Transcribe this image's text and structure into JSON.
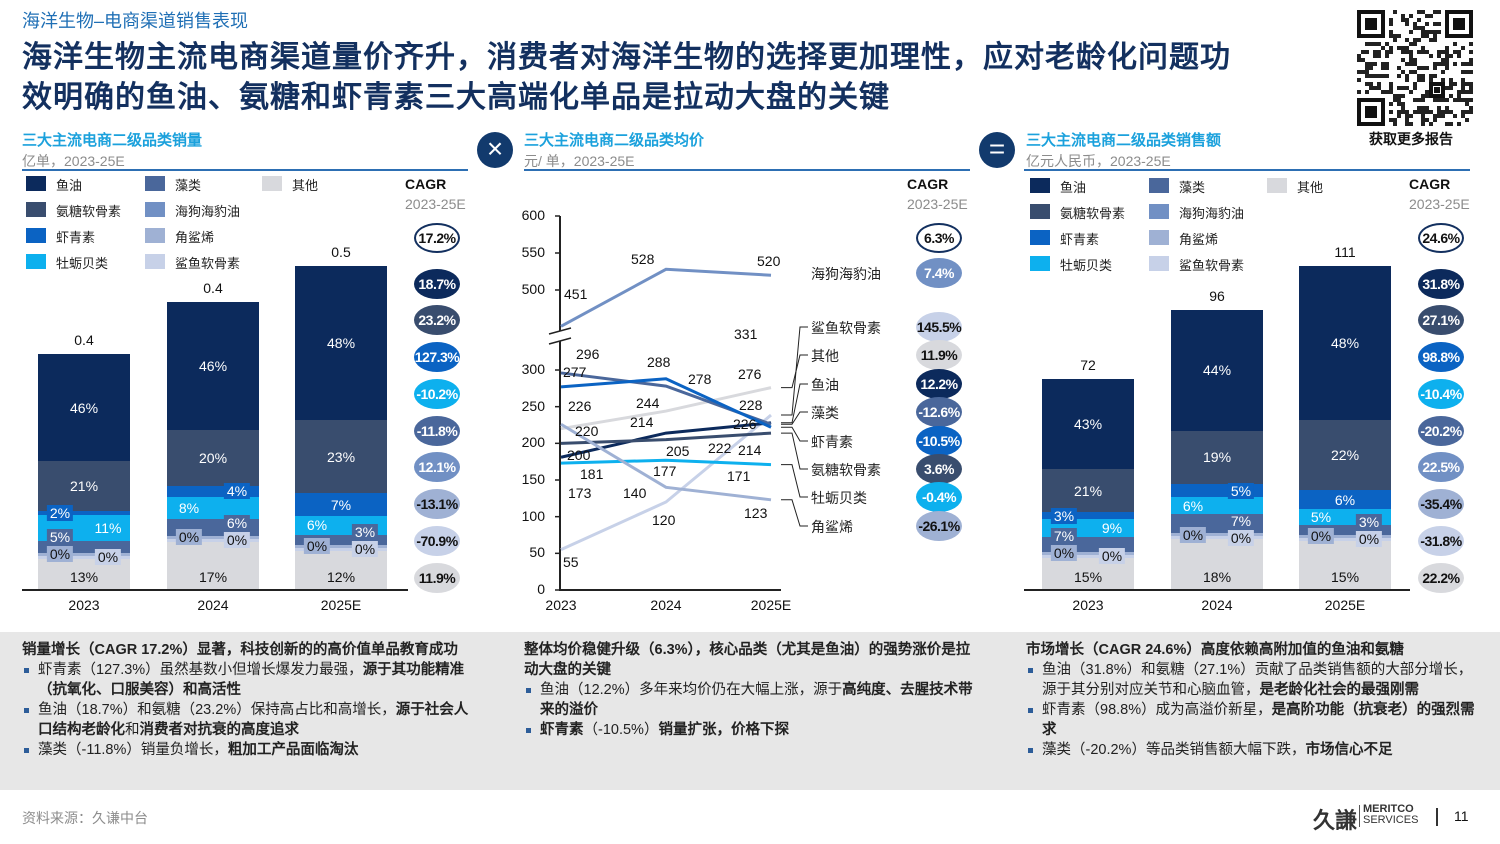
{
  "header": {
    "section": "海洋生物–电商渠道销售表现",
    "title_line1": "海洋生物主流电商渠道量价齐升，消费者对海洋生物的选择更加理性，应对老龄化问题功",
    "title_line2": "效明确的鱼油、氨糖和虾青素三大高端化单品是拉动大盘的关键",
    "qr_caption": "获取更多报告"
  },
  "categories": [
    {
      "name": "鱼油",
      "color": "#0c2a5c",
      "text_color": "#ffffff"
    },
    {
      "name": "氨糖软骨素",
      "color": "#394d6e",
      "text_color": "#ffffff"
    },
    {
      "name": "虾青素",
      "color": "#0b63c3",
      "text_color": "#ffffff"
    },
    {
      "name": "牡蛎贝类",
      "color": "#0db0ee",
      "text_color": "#ffffff"
    },
    {
      "name": "藻类",
      "color": "#4a679b",
      "text_color": "#ffffff"
    },
    {
      "name": "海狗海豹油",
      "color": "#7190c4",
      "text_color": "#ffffff"
    },
    {
      "name": "角鲨烯",
      "color": "#9fb1d4",
      "text_color": "#111111"
    },
    {
      "name": "鲨鱼软骨素",
      "color": "#c7d1e8",
      "text_color": "#111111"
    },
    {
      "name": "其他",
      "color": "#d8d9dd",
      "text_color": "#111111"
    }
  ],
  "cagr_header": {
    "label": "CAGR",
    "period": "2023-25E"
  },
  "operators": [
    {
      "icon": "multiply-icon",
      "glyph": "×"
    },
    {
      "icon": "equals-icon",
      "glyph": "="
    }
  ],
  "chart_data": [
    {
      "type": "bar",
      "stacked": true,
      "title": "三大主流电商二级品类销量",
      "unit": "亿单，2023-25E",
      "categories": [
        "2023",
        "2024",
        "2025E"
      ],
      "totals": [
        "0.4",
        "0.4",
        "0.5"
      ],
      "cagr_total": "17.2%",
      "series": [
        {
          "name": "鱼油",
          "values": [
            46,
            46,
            48
          ],
          "cagr": "18.7%"
        },
        {
          "name": "氨糖软骨素",
          "values": [
            21,
            20,
            23
          ],
          "cagr": "23.2%"
        },
        {
          "name": "虾青素",
          "values": [
            2,
            4,
            7
          ],
          "cagr": "127.3%"
        },
        {
          "name": "牡蛎贝类",
          "values": [
            11,
            8,
            6
          ],
          "cagr": "-10.2%"
        },
        {
          "name": "藻类",
          "values": [
            5,
            6,
            3
          ],
          "cagr": "-11.8%"
        },
        {
          "name": "海狗海豹油",
          "values": [
            null,
            null,
            null
          ],
          "cagr": "12.1%"
        },
        {
          "name": "角鲨烯",
          "values": [
            0,
            0,
            0
          ],
          "cagr": "-13.1%"
        },
        {
          "name": "鲨鱼软骨素",
          "values": [
            0,
            0,
            0
          ],
          "cagr": "-70.9%"
        },
        {
          "name": "其他",
          "values": [
            13,
            17,
            12
          ],
          "cagr": "11.9%"
        }
      ],
      "value_suffix": "%",
      "legend": "top"
    },
    {
      "type": "line",
      "title": "三大主流电商二级品类均价",
      "unit": "元/ 单，2023-25E",
      "categories": [
        "2023",
        "2024",
        "2025E"
      ],
      "yticks": [
        "0",
        "50",
        "100",
        "150",
        "200",
        "250",
        "300",
        "500",
        "550",
        "600"
      ],
      "ylim": [
        0,
        600
      ],
      "axis_break": [
        300,
        500
      ],
      "cagr_total": "6.3%",
      "series": [
        {
          "name": "海狗海豹油",
          "values": [
            451,
            528,
            520
          ],
          "cagr": "7.4%",
          "color": "#7190c4",
          "text_color": "#ffffff"
        },
        {
          "name": "鲨鱼软骨素",
          "values": [
            55,
            120,
            331
          ],
          "cagr": "145.5%",
          "color": "#c7d1e8",
          "text_color": "#111111"
        },
        {
          "name": "其他",
          "values": [
            220,
            244,
            276
          ],
          "cagr": "11.9%",
          "color": "#d8d9dd",
          "text_color": "#111111"
        },
        {
          "name": "鱼油",
          "values": [
            181,
            214,
            228
          ],
          "cagr": "12.2%",
          "color": "#0c2a5c",
          "text_color": "#ffffff"
        },
        {
          "name": "藻类",
          "values": [
            296,
            278,
            226
          ],
          "cagr": "-12.6%",
          "color": "#4a679b",
          "text_color": "#ffffff"
        },
        {
          "name": "虾青素",
          "values": [
            277,
            288,
            222
          ],
          "cagr": "-10.5%",
          "color": "#0b63c3",
          "text_color": "#ffffff"
        },
        {
          "name": "氨糖软骨素",
          "values": [
            200,
            205,
            214
          ],
          "cagr": "3.6%",
          "color": "#394d6e",
          "text_color": "#ffffff"
        },
        {
          "name": "牡蛎贝类",
          "values": [
            173,
            177,
            171
          ],
          "cagr": "-0.4%",
          "color": "#0db0ee",
          "text_color": "#ffffff"
        },
        {
          "name": "角鲨烯",
          "values": [
            226,
            140,
            123
          ],
          "cagr": "-26.1%",
          "color": "#9fb1d4",
          "text_color": "#111111"
        }
      ],
      "grid": false
    },
    {
      "type": "bar",
      "stacked": true,
      "title": "三大主流电商二级品类销售额",
      "unit": "亿元人民币，2023-25E",
      "categories": [
        "2023",
        "2024",
        "2025E"
      ],
      "totals": [
        "72",
        "96",
        "111"
      ],
      "cagr_total": "24.6%",
      "series": [
        {
          "name": "鱼油",
          "values": [
            43,
            44,
            48
          ],
          "cagr": "31.8%"
        },
        {
          "name": "氨糖软骨素",
          "values": [
            21,
            19,
            22
          ],
          "cagr": "27.1%"
        },
        {
          "name": "虾青素",
          "values": [
            3,
            5,
            6
          ],
          "cagr": "98.8%"
        },
        {
          "name": "牡蛎贝类",
          "values": [
            9,
            6,
            5
          ],
          "cagr": "-10.4%"
        },
        {
          "name": "藻类",
          "values": [
            7,
            7,
            3
          ],
          "cagr": "-20.2%"
        },
        {
          "name": "海狗海豹油",
          "values": [
            null,
            null,
            null
          ],
          "cagr": "22.5%"
        },
        {
          "name": "角鲨烯",
          "values": [
            0,
            0,
            0
          ],
          "cagr": "-35.4%"
        },
        {
          "name": "鲨鱼软骨素",
          "values": [
            0,
            0,
            0
          ],
          "cagr": "-31.8%"
        },
        {
          "name": "其他",
          "values": [
            15,
            18,
            15
          ],
          "cagr": "22.2%"
        }
      ],
      "value_suffix": "%",
      "legend": "top"
    }
  ],
  "notes": [
    {
      "heading": [
        {
          "t": "销量增长（CAGR 17.2%）显著，科技创新的的高价值单品教育成功",
          "b": true
        }
      ],
      "bullets": [
        [
          {
            "t": "虾青素（127.3%）虽然基数小但增长爆发力最强，",
            "b": false
          },
          {
            "t": "源于其功能精准（抗氧化、口服美容）和高活性",
            "b": true
          }
        ],
        [
          {
            "t": "鱼油（18.7%）和氨糖（23.2%）保持高占比和高增长，",
            "b": false
          },
          {
            "t": "源于社会人口结构老龄化",
            "b": true
          },
          {
            "t": "和",
            "b": false
          },
          {
            "t": "消费者对抗衰的高度追求",
            "b": true
          }
        ],
        [
          {
            "t": "藻类（-11.8%）销量负增长，",
            "b": false
          },
          {
            "t": "粗加工产品面临淘汰",
            "b": true
          }
        ]
      ]
    },
    {
      "heading": [
        {
          "t": "整体均价稳健升级（6.3%），核心品类（尤其是鱼油）的强势涨价是拉动大盘的关键",
          "b": true
        }
      ],
      "bullets": [
        [
          {
            "t": "鱼油（12.2%）多年来均价仍在大幅上涨，源于",
            "b": false
          },
          {
            "t": "高纯度、去腥技术带来的溢价",
            "b": true
          }
        ],
        [
          {
            "t": "虾青素",
            "b": true
          },
          {
            "t": "（-10.5%）",
            "b": false
          },
          {
            "t": "销量扩张，价格下探",
            "b": true
          }
        ]
      ]
    },
    {
      "heading": [
        {
          "t": "市场增长（CAGR 24.6%）高度依赖高附加值的鱼油和氨糖",
          "b": true
        }
      ],
      "bullets": [
        [
          {
            "t": "鱼油（31.8%）和氨糖（27.1%）贡献了品类销售额的大部分增长，源于其分别对应关节和心脑血管，",
            "b": false
          },
          {
            "t": "是老龄化社会的最强刚需",
            "b": true
          }
        ],
        [
          {
            "t": "虾青素（98.8%）成为高溢价新星，",
            "b": false
          },
          {
            "t": "是高阶功能（抗衰老）的强烈需求",
            "b": true
          }
        ],
        [
          {
            "t": "藻类（-20.2%）等品类销售额大幅下跌，",
            "b": false
          },
          {
            "t": "市场信心不足",
            "b": true
          }
        ]
      ]
    }
  ],
  "footer": {
    "source": "资料来源：久谦中台",
    "logo_cn": "久謙",
    "logo_en1": "MERITCO",
    "logo_en2": "SERVICES",
    "page": "11"
  }
}
